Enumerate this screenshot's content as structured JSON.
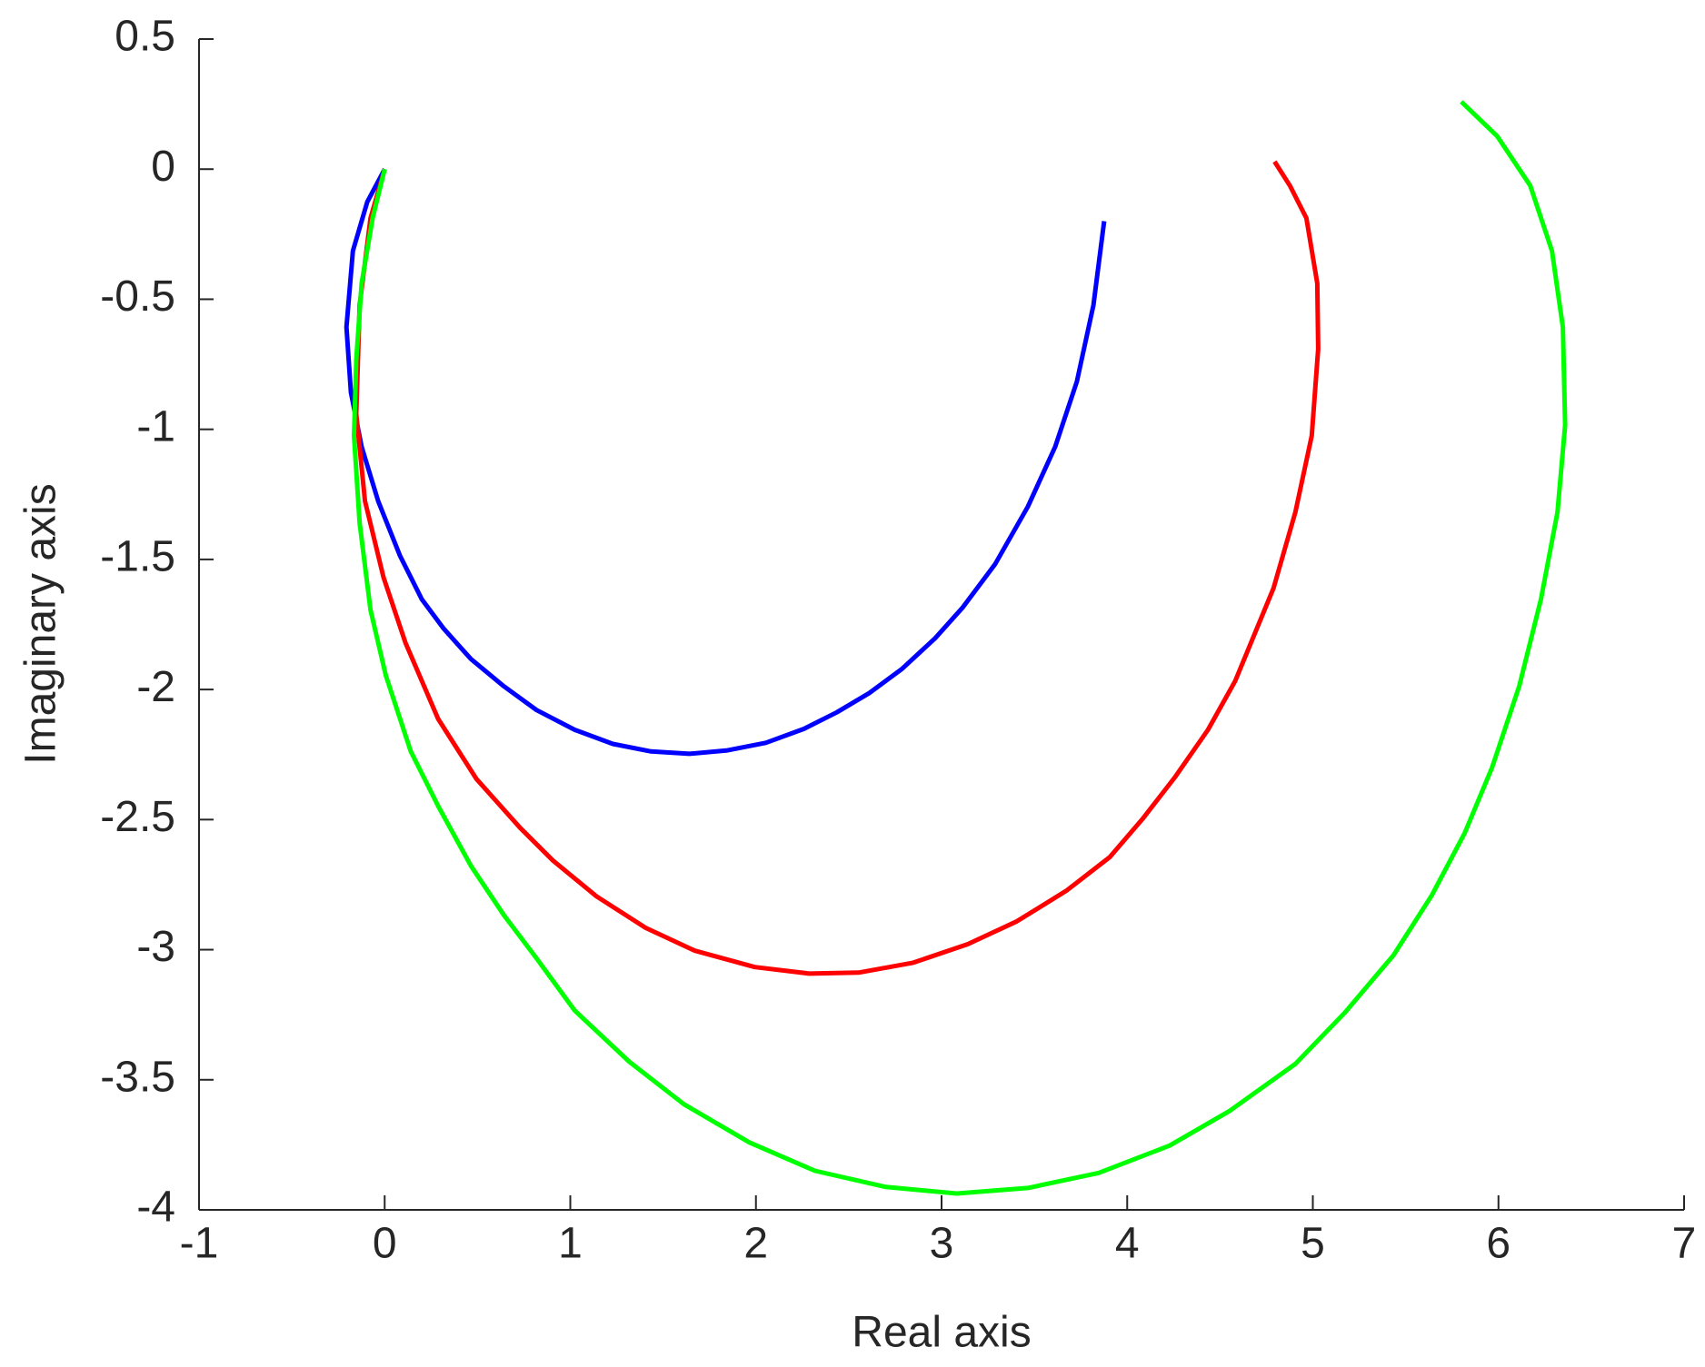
{
  "chart_data": {
    "type": "line",
    "xlabel": "Real axis",
    "ylabel": "Imaginary axis",
    "xlim": [
      -1,
      7
    ],
    "ylim": [
      -4,
      0.5
    ],
    "xticks": [
      -1,
      0,
      1,
      2,
      3,
      4,
      5,
      6,
      7
    ],
    "yticks": [
      -4,
      -3.5,
      -3,
      -2.5,
      -2,
      -1.5,
      -1,
      -0.5,
      0,
      0.5
    ],
    "grid": false,
    "series": [
      {
        "color": "#0000ff",
        "x": [
          0,
          -0.094,
          -0.171,
          -0.206,
          -0.182,
          -0.124,
          -0.035,
          0.082,
          0.2,
          0.318,
          0.465,
          0.641,
          0.818,
          1.024,
          1.229,
          1.435,
          1.641,
          1.847,
          2.053,
          2.259,
          2.435,
          2.612,
          2.788,
          2.965,
          3.112,
          3.288,
          3.465,
          3.612,
          3.729,
          3.818,
          3.876
        ],
        "values": [
          0,
          -0.126,
          -0.314,
          -0.607,
          -0.858,
          -1.067,
          -1.276,
          -1.485,
          -1.653,
          -1.766,
          -1.883,
          -1.987,
          -2.079,
          -2.155,
          -2.209,
          -2.238,
          -2.247,
          -2.234,
          -2.205,
          -2.151,
          -2.088,
          -2.013,
          -1.92,
          -1.803,
          -1.686,
          -1.519,
          -1.297,
          -1.067,
          -0.816,
          -0.523,
          -0.2
        ]
      },
      {
        "color": "#ff0000",
        "x": [
          0,
          -0.076,
          -0.135,
          -0.153,
          -0.106,
          -0.006,
          0.112,
          0.288,
          0.494,
          0.729,
          0.906,
          1.141,
          1.406,
          1.671,
          1.994,
          2.288,
          2.553,
          2.847,
          3.141,
          3.406,
          3.671,
          3.906,
          4.082,
          4.259,
          4.435,
          4.582,
          4.788,
          4.906,
          4.994,
          5.029,
          5.024,
          4.965,
          4.876,
          4.794
        ],
        "values": [
          0,
          -0.188,
          -0.523,
          -0.941,
          -1.276,
          -1.569,
          -1.82,
          -2.113,
          -2.343,
          -2.531,
          -2.657,
          -2.795,
          -2.916,
          -3.004,
          -3.067,
          -3.092,
          -3.088,
          -3.05,
          -2.979,
          -2.891,
          -2.774,
          -2.644,
          -2.498,
          -2.335,
          -2.155,
          -1.967,
          -1.611,
          -1.318,
          -1.025,
          -0.69,
          -0.439,
          -0.188,
          -0.063,
          0.029
        ]
      },
      {
        "color": "#00ff00",
        "x": [
          0,
          -0.065,
          -0.124,
          -0.153,
          -0.165,
          -0.135,
          -0.076,
          0.006,
          0.141,
          0.288,
          0.465,
          0.641,
          0.818,
          1.024,
          1.318,
          1.612,
          1.965,
          2.318,
          2.7,
          3.082,
          3.465,
          3.847,
          4.229,
          4.553,
          4.906,
          5.171,
          5.435,
          5.641,
          5.818,
          5.965,
          6.112,
          6.229,
          6.318,
          6.359,
          6.347,
          6.288,
          6.171,
          5.994,
          5.8
        ],
        "values": [
          0,
          -0.188,
          -0.439,
          -0.732,
          -1.025,
          -1.36,
          -1.695,
          -1.946,
          -2.238,
          -2.448,
          -2.678,
          -2.866,
          -3.033,
          -3.234,
          -3.431,
          -3.594,
          -3.741,
          -3.85,
          -3.912,
          -3.937,
          -3.916,
          -3.858,
          -3.753,
          -3.619,
          -3.439,
          -3.243,
          -3.021,
          -2.791,
          -2.552,
          -2.301,
          -1.987,
          -1.653,
          -1.318,
          -0.983,
          -0.607,
          -0.314,
          -0.063,
          0.126,
          0.259
        ]
      }
    ]
  }
}
